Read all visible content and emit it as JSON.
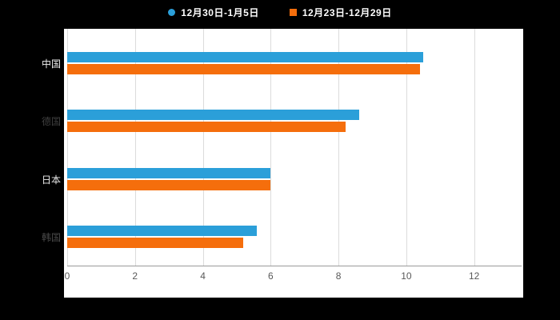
{
  "chart_data": {
    "type": "bar",
    "orientation": "horizontal",
    "title": "",
    "categories": [
      "中国",
      "德国",
      "日本",
      "韩国"
    ],
    "series": [
      {
        "name": "12月30日-1月5日",
        "color": "#2B9FD9",
        "marker": "circle",
        "values": [
          10.5,
          8.6,
          6.0,
          5.6
        ]
      },
      {
        "name": "12月23日-12月29日",
        "color": "#F56E0C",
        "marker": "square",
        "values": [
          10.4,
          8.2,
          6.0,
          5.2
        ]
      }
    ],
    "x_ticks": [
      0,
      2,
      4,
      6,
      8,
      10,
      12
    ],
    "xlim": [
      0,
      13.4
    ],
    "grid": true,
    "legend_position": "top",
    "category_label_colors": [
      "#f0f0f0",
      "#3f3f3f",
      "#ededed",
      "#4a4a4a"
    ]
  },
  "colors": {
    "background": "#000000",
    "plot_background": "#ffffff",
    "gridline": "#dcdcdc",
    "axis_line": "#9a9a9a",
    "tick_label": "#595959",
    "legend_text": "#ffffff"
  }
}
